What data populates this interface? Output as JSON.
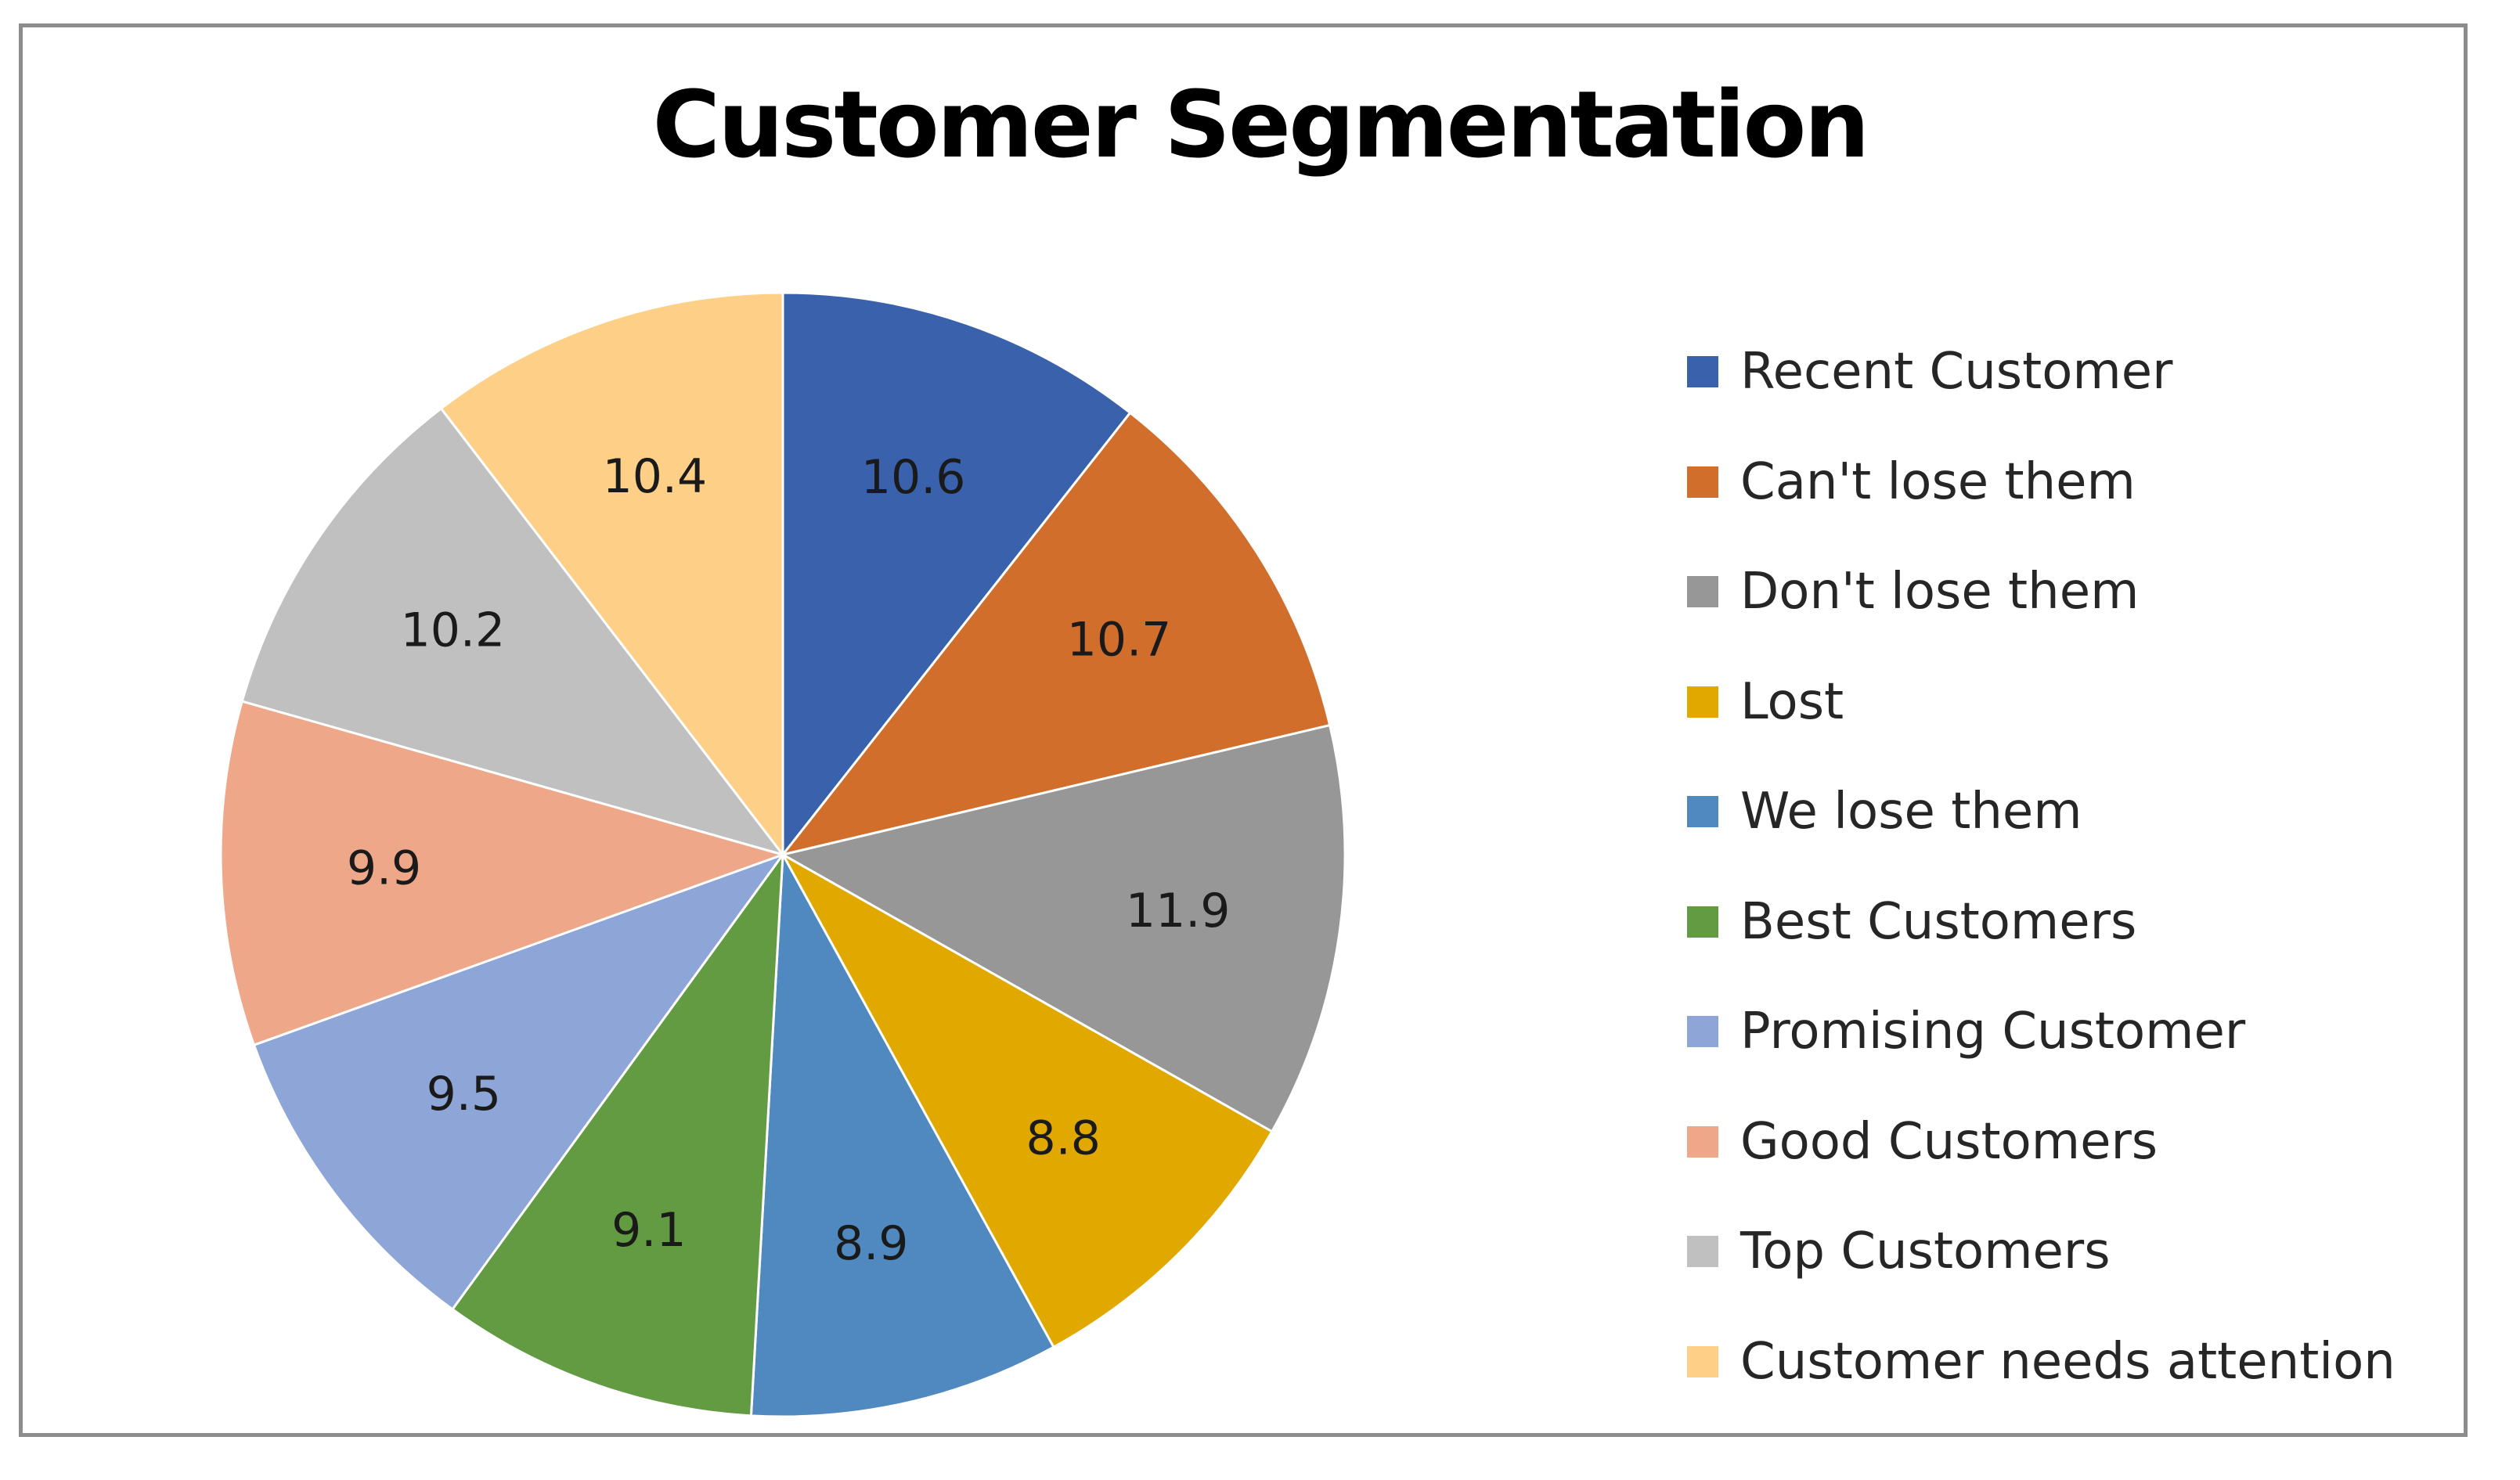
{
  "chart_data": {
    "type": "pie",
    "title": "Customer Segmentation",
    "legend_position": "right",
    "categories": [
      "Recent Customer",
      "Can't lose them",
      "Don't lose them",
      "Lost",
      "We lose them",
      "Best Customers",
      "Promising Customer",
      "Good Customers",
      "Top Customers",
      "Customer needs attention"
    ],
    "values": [
      10.6,
      10.7,
      11.9,
      8.8,
      8.9,
      9.1,
      9.5,
      9.9,
      10.2,
      10.4
    ],
    "value_labels": [
      "10.6",
      "10.7",
      "11.9",
      "8.8",
      "8.9",
      "9.1",
      "9.5",
      "9.9",
      "10.2",
      "10.4"
    ],
    "colors": [
      "#3a62ac",
      "#d26e2c",
      "#979797",
      "#e1a900",
      "#4f89c0",
      "#629b41",
      "#8ea5d7",
      "#efa78a",
      "#c0c0c0",
      "#fdcf87"
    ]
  }
}
